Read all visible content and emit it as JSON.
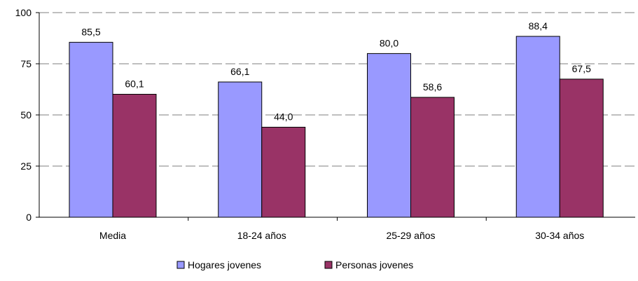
{
  "chart_data": {
    "type": "bar",
    "title": "",
    "xlabel": "",
    "ylabel": "",
    "categories": [
      "Media",
      "18-24 años",
      "25-29 años",
      "30-34 años"
    ],
    "series": [
      {
        "name": "Hogares jovenes",
        "values": [
          85.5,
          66.1,
          80.0,
          88.4
        ],
        "labels": [
          "85,5",
          "66,1",
          "80,0",
          "88,4"
        ],
        "color": "#9999ff"
      },
      {
        "name": "Personas jovenes",
        "values": [
          60.1,
          44.0,
          58.6,
          67.5
        ],
        "labels": [
          "60,1",
          "44,0",
          "58,6",
          "67,5"
        ],
        "color": "#993366"
      }
    ],
    "ylim": [
      0,
      100
    ],
    "yticks": [
      0,
      25,
      50,
      75,
      100
    ],
    "ytick_labels": [
      "0",
      "25",
      "50",
      "75",
      "100"
    ],
    "grid": "horizontal dashed",
    "legend_position": "bottom-center"
  }
}
